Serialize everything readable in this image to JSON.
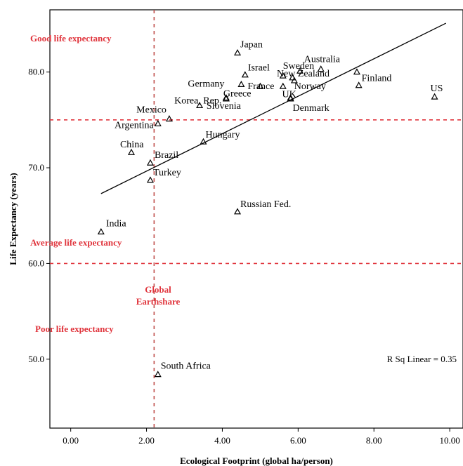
{
  "chart_data": {
    "type": "scatter",
    "xlabel": "Ecological Footprint (global ha/person)",
    "ylabel": "Life Expectancy (years)",
    "xlim": [
      -0.55,
      10.35
    ],
    "ylim": [
      42.8,
      86.5
    ],
    "x_ticks": [
      "0.00",
      "2.00",
      "4.00",
      "6.00",
      "8.00",
      "10.00"
    ],
    "x_tick_values": [
      0,
      2,
      4,
      6,
      8,
      10
    ],
    "y_ticks": [
      "50.0",
      "60.0",
      "70.0",
      "80.0"
    ],
    "y_tick_values": [
      50,
      60,
      70,
      80
    ],
    "grid": false,
    "marker": "open-triangle",
    "points": [
      {
        "label": "Japan",
        "x": 4.4,
        "y": 82.0
      },
      {
        "label": "Sweden",
        "x": 5.6,
        "y": 79.6
      },
      {
        "label": "Australia",
        "x": 6.6,
        "y": 80.3
      },
      {
        "label": "Israel",
        "x": 4.6,
        "y": 79.7
      },
      {
        "label": "New Zealand",
        "x": 5.9,
        "y": 79.1
      },
      {
        "label": "Germany",
        "x": 4.5,
        "y": 78.7
      },
      {
        "label": "France",
        "x": 5.0,
        "y": 78.5
      },
      {
        "label": "Norway",
        "x": 5.6,
        "y": 78.5
      },
      {
        "label": "Finland",
        "x": 7.6,
        "y": 78.6
      },
      {
        "label": "Greece",
        "x": 4.1,
        "y": 77.3
      },
      {
        "label": "UK",
        "x": 5.8,
        "y": 77.3
      },
      {
        "label": "Denmark",
        "x": 5.8,
        "y": 77.2
      },
      {
        "label": "US",
        "x": 9.6,
        "y": 77.4
      },
      {
        "label": "Korea, Rep.",
        "x": 3.4,
        "y": 76.5
      },
      {
        "label": "Mexico",
        "x": 2.6,
        "y": 75.1
      },
      {
        "label": "Slovenia",
        "x": 4.1,
        "y": 77.2
      },
      {
        "label": "Argentina",
        "x": 2.3,
        "y": 74.6
      },
      {
        "label": "Hungary",
        "x": 3.5,
        "y": 72.7
      },
      {
        "label": "China",
        "x": 1.6,
        "y": 71.6
      },
      {
        "label": "Brazil",
        "x": 2.1,
        "y": 70.5
      },
      {
        "label": "Turkey",
        "x": 2.1,
        "y": 68.7
      },
      {
        "label": "Russian Fed.",
        "x": 4.4,
        "y": 65.4
      },
      {
        "label": "India",
        "x": 0.8,
        "y": 63.3
      },
      {
        "label": "South Africa",
        "x": 2.3,
        "y": 48.4
      },
      {
        "label": "",
        "x": 5.85,
        "y": 79.4
      },
      {
        "label": "",
        "x": 6.05,
        "y": 80.1
      },
      {
        "label": "",
        "x": 7.55,
        "y": 80.0
      }
    ],
    "fit_line": {
      "x": [
        0.8,
        9.9
      ],
      "y": [
        67.3,
        85.1
      ]
    },
    "reference_lines": [
      {
        "orientation": "horizontal",
        "value": 75.0,
        "color": "#e0343c",
        "style": "dashed"
      },
      {
        "orientation": "horizontal",
        "value": 60.0,
        "color": "#e0343c",
        "style": "dashed"
      },
      {
        "orientation": "vertical",
        "value": 2.2,
        "color": "#c0504d",
        "style": "dashed"
      }
    ],
    "annotations": [
      {
        "text": "Good life expectancy"
      },
      {
        "text": "Average life expectancy"
      },
      {
        "text": "Poor life expectancy"
      },
      {
        "text": "Global"
      },
      {
        "text": "Earthshare"
      }
    ],
    "r_squared_text": "R Sq Linear = 0.35"
  }
}
